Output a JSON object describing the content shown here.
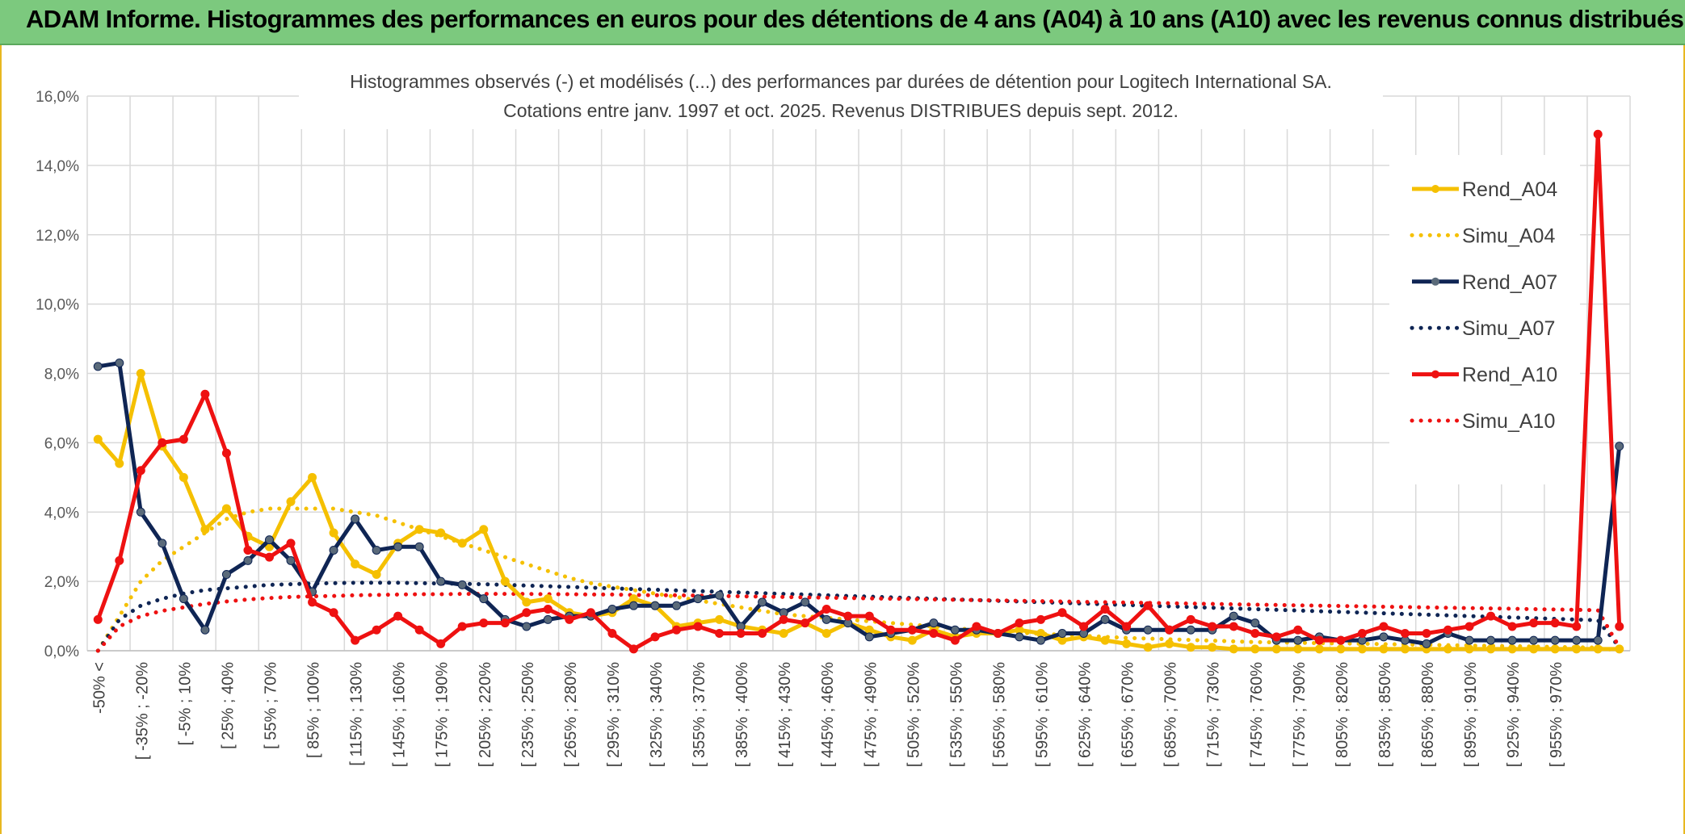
{
  "banner": {
    "title": "ADAM Informe. Histogrammes des performances en euros pour des détentions de 4 ans (A04) à 10 ans (A10) avec les revenus connus distribués"
  },
  "chart_data": {
    "type": "line",
    "title": "Histogrammes observés (-) et modélisés (...) des performances par durées de détention pour Logitech International SA.",
    "subtitle": "Cotations entre janv. 1997 et oct. 2025. Revenus DISTRIBUES depuis sept. 2012.",
    "ylim": [
      0,
      16
    ],
    "yticks": [
      "0,0%",
      "2,0%",
      "4,0%",
      "6,0%",
      "8,0%",
      "10,0%",
      "12,0%",
      "14,0%",
      "16,0%"
    ],
    "grid": true,
    "legend_position": "right",
    "colors": {
      "A04": "#f5c000",
      "A07": "#0f2554",
      "A10": "#ee1111",
      "marker_A07": "#5a6a7a"
    },
    "xticks": [
      "-50% <",
      "[ -35% ; -20%",
      "[ -5% ; 10%",
      "[ 25% ; 40%",
      "[ 55% ; 70%",
      "[ 85% ; 100%",
      "[ 115% ; 130%",
      "[ 145% ; 160%",
      "[ 175% ; 190%",
      "[ 205% ; 220%",
      "[ 235% ; 250%",
      "[ 265% ; 280%",
      "[ 295% ; 310%",
      "[ 325% ; 340%",
      "[ 355% ; 370%",
      "[ 385% ; 400%",
      "[ 415% ; 430%",
      "[ 445% ; 460%",
      "[ 475% ; 490%",
      "[ 505% ; 520%",
      "[ 535% ; 550%",
      "[ 565% ; 580%",
      "[ 595% ; 610%",
      "[ 625% ; 640%",
      "[ 655% ; 670%",
      "[ 685% ; 700%",
      "[ 715% ; 730%",
      "[ 745% ; 760%",
      "[ 775% ; 790%",
      "[ 805% ; 820%",
      "[ 835% ; 850%",
      "[ 865% ; 880%",
      "[ 895% ; 910%",
      "[ 925% ; 940%",
      "[ 955% ; 970%"
    ],
    "series": [
      {
        "name": "Rend_A04",
        "style": "solid",
        "color": "#f5c000",
        "values": [
          6.1,
          5.4,
          8.0,
          5.9,
          5.0,
          3.5,
          4.1,
          3.3,
          3.0,
          4.3,
          5.0,
          3.4,
          2.5,
          2.2,
          3.1,
          3.5,
          3.4,
          3.1,
          3.5,
          2.0,
          1.4,
          1.5,
          1.1,
          1.0,
          1.1,
          1.5,
          1.3,
          0.7,
          0.8,
          0.9,
          0.7,
          0.6,
          0.5,
          0.8,
          0.5,
          0.8,
          0.6,
          0.4,
          0.3,
          0.6,
          0.4,
          0.5,
          0.5,
          0.6,
          0.5,
          0.3,
          0.4,
          0.3,
          0.2,
          0.1,
          0.2,
          0.1,
          0.1,
          0.05,
          0.05,
          0.05,
          0.05,
          0.05,
          0.05,
          0.05,
          0.05,
          0.05,
          0.05,
          0.05,
          0.05,
          0.05,
          0.05,
          0.05,
          0.05,
          0.05,
          0.05,
          0.05
        ]
      },
      {
        "name": "Simu_A04",
        "style": "dotted",
        "color": "#f5c000",
        "values": [
          0.0,
          1.0,
          2.0,
          2.6,
          3.0,
          3.4,
          3.8,
          4.0,
          4.1,
          4.1,
          4.1,
          4.1,
          4.0,
          3.9,
          3.7,
          3.5,
          3.3,
          3.1,
          2.9,
          2.7,
          2.5,
          2.3,
          2.1,
          1.95,
          1.85,
          1.75,
          1.65,
          1.55,
          1.45,
          1.35,
          1.25,
          1.15,
          1.05,
          1.0,
          0.95,
          0.9,
          0.85,
          0.8,
          0.75,
          0.7,
          0.65,
          0.6,
          0.55,
          0.52,
          0.49,
          0.46,
          0.43,
          0.4,
          0.37,
          0.35,
          0.33,
          0.31,
          0.29,
          0.27,
          0.25,
          0.24,
          0.23,
          0.22,
          0.21,
          0.2,
          0.19,
          0.18,
          0.17,
          0.16,
          0.15,
          0.14,
          0.13,
          0.12,
          0.11,
          0.1,
          0.09,
          0.0
        ]
      },
      {
        "name": "Rend_A07",
        "style": "solid",
        "color": "#0f2554",
        "values": [
          8.2,
          8.3,
          4.0,
          3.1,
          1.5,
          0.6,
          2.2,
          2.6,
          3.2,
          2.6,
          1.7,
          2.9,
          3.8,
          2.9,
          3.0,
          3.0,
          2.0,
          1.9,
          1.5,
          0.9,
          0.7,
          0.9,
          1.0,
          1.0,
          1.2,
          1.3,
          1.3,
          1.3,
          1.5,
          1.6,
          0.7,
          1.4,
          1.1,
          1.4,
          0.9,
          0.8,
          0.4,
          0.5,
          0.6,
          0.8,
          0.6,
          0.6,
          0.5,
          0.4,
          0.3,
          0.5,
          0.5,
          0.9,
          0.6,
          0.6,
          0.6,
          0.6,
          0.6,
          1.0,
          0.8,
          0.3,
          0.3,
          0.4,
          0.3,
          0.3,
          0.4,
          0.3,
          0.2,
          0.5,
          0.3,
          0.3,
          0.3,
          0.3,
          0.3,
          0.3,
          0.3,
          5.9
        ]
      },
      {
        "name": "Simu_A07",
        "style": "dotted",
        "color": "#0f2554",
        "values": [
          0.0,
          0.9,
          1.3,
          1.5,
          1.65,
          1.75,
          1.8,
          1.85,
          1.9,
          1.92,
          1.94,
          1.95,
          1.96,
          1.96,
          1.96,
          1.95,
          1.94,
          1.93,
          1.92,
          1.9,
          1.88,
          1.86,
          1.84,
          1.82,
          1.8,
          1.78,
          1.76,
          1.74,
          1.72,
          1.7,
          1.68,
          1.66,
          1.64,
          1.62,
          1.6,
          1.58,
          1.56,
          1.54,
          1.52,
          1.5,
          1.48,
          1.46,
          1.44,
          1.42,
          1.4,
          1.38,
          1.36,
          1.34,
          1.32,
          1.3,
          1.28,
          1.26,
          1.24,
          1.22,
          1.2,
          1.18,
          1.16,
          1.14,
          1.12,
          1.1,
          1.08,
          1.06,
          1.04,
          1.02,
          1.0,
          0.98,
          0.96,
          0.94,
          0.92,
          0.9,
          0.88,
          0.1
        ]
      },
      {
        "name": "Rend_A10",
        "style": "solid",
        "color": "#ee1111",
        "values": [
          0.9,
          2.6,
          5.2,
          6.0,
          6.1,
          7.4,
          5.7,
          2.9,
          2.7,
          3.1,
          1.4,
          1.1,
          0.3,
          0.6,
          1.0,
          0.6,
          0.2,
          0.7,
          0.8,
          0.8,
          1.1,
          1.2,
          0.9,
          1.1,
          0.5,
          0.05,
          0.4,
          0.6,
          0.7,
          0.5,
          0.5,
          0.5,
          0.9,
          0.8,
          1.2,
          1.0,
          1.0,
          0.6,
          0.6,
          0.5,
          0.3,
          0.7,
          0.5,
          0.8,
          0.9,
          1.1,
          0.7,
          1.2,
          0.7,
          1.3,
          0.6,
          0.9,
          0.7,
          0.7,
          0.5,
          0.4,
          0.6,
          0.3,
          0.3,
          0.5,
          0.7,
          0.5,
          0.5,
          0.6,
          0.7,
          1.0,
          0.7,
          0.8,
          0.8,
          0.7,
          14.9,
          0.7
        ]
      },
      {
        "name": "Simu_A10",
        "style": "dotted",
        "color": "#ee1111",
        "values": [
          0.0,
          0.7,
          1.0,
          1.15,
          1.25,
          1.35,
          1.42,
          1.48,
          1.52,
          1.55,
          1.57,
          1.58,
          1.6,
          1.61,
          1.62,
          1.63,
          1.63,
          1.64,
          1.64,
          1.64,
          1.64,
          1.63,
          1.63,
          1.62,
          1.62,
          1.61,
          1.6,
          1.6,
          1.59,
          1.58,
          1.57,
          1.56,
          1.55,
          1.54,
          1.53,
          1.52,
          1.51,
          1.5,
          1.49,
          1.48,
          1.47,
          1.46,
          1.45,
          1.44,
          1.43,
          1.42,
          1.41,
          1.4,
          1.39,
          1.38,
          1.37,
          1.36,
          1.35,
          1.34,
          1.33,
          1.32,
          1.31,
          1.3,
          1.29,
          1.28,
          1.27,
          1.26,
          1.25,
          1.24,
          1.23,
          1.22,
          1.21,
          1.2,
          1.19,
          1.18,
          1.17,
          0.1
        ]
      }
    ]
  }
}
